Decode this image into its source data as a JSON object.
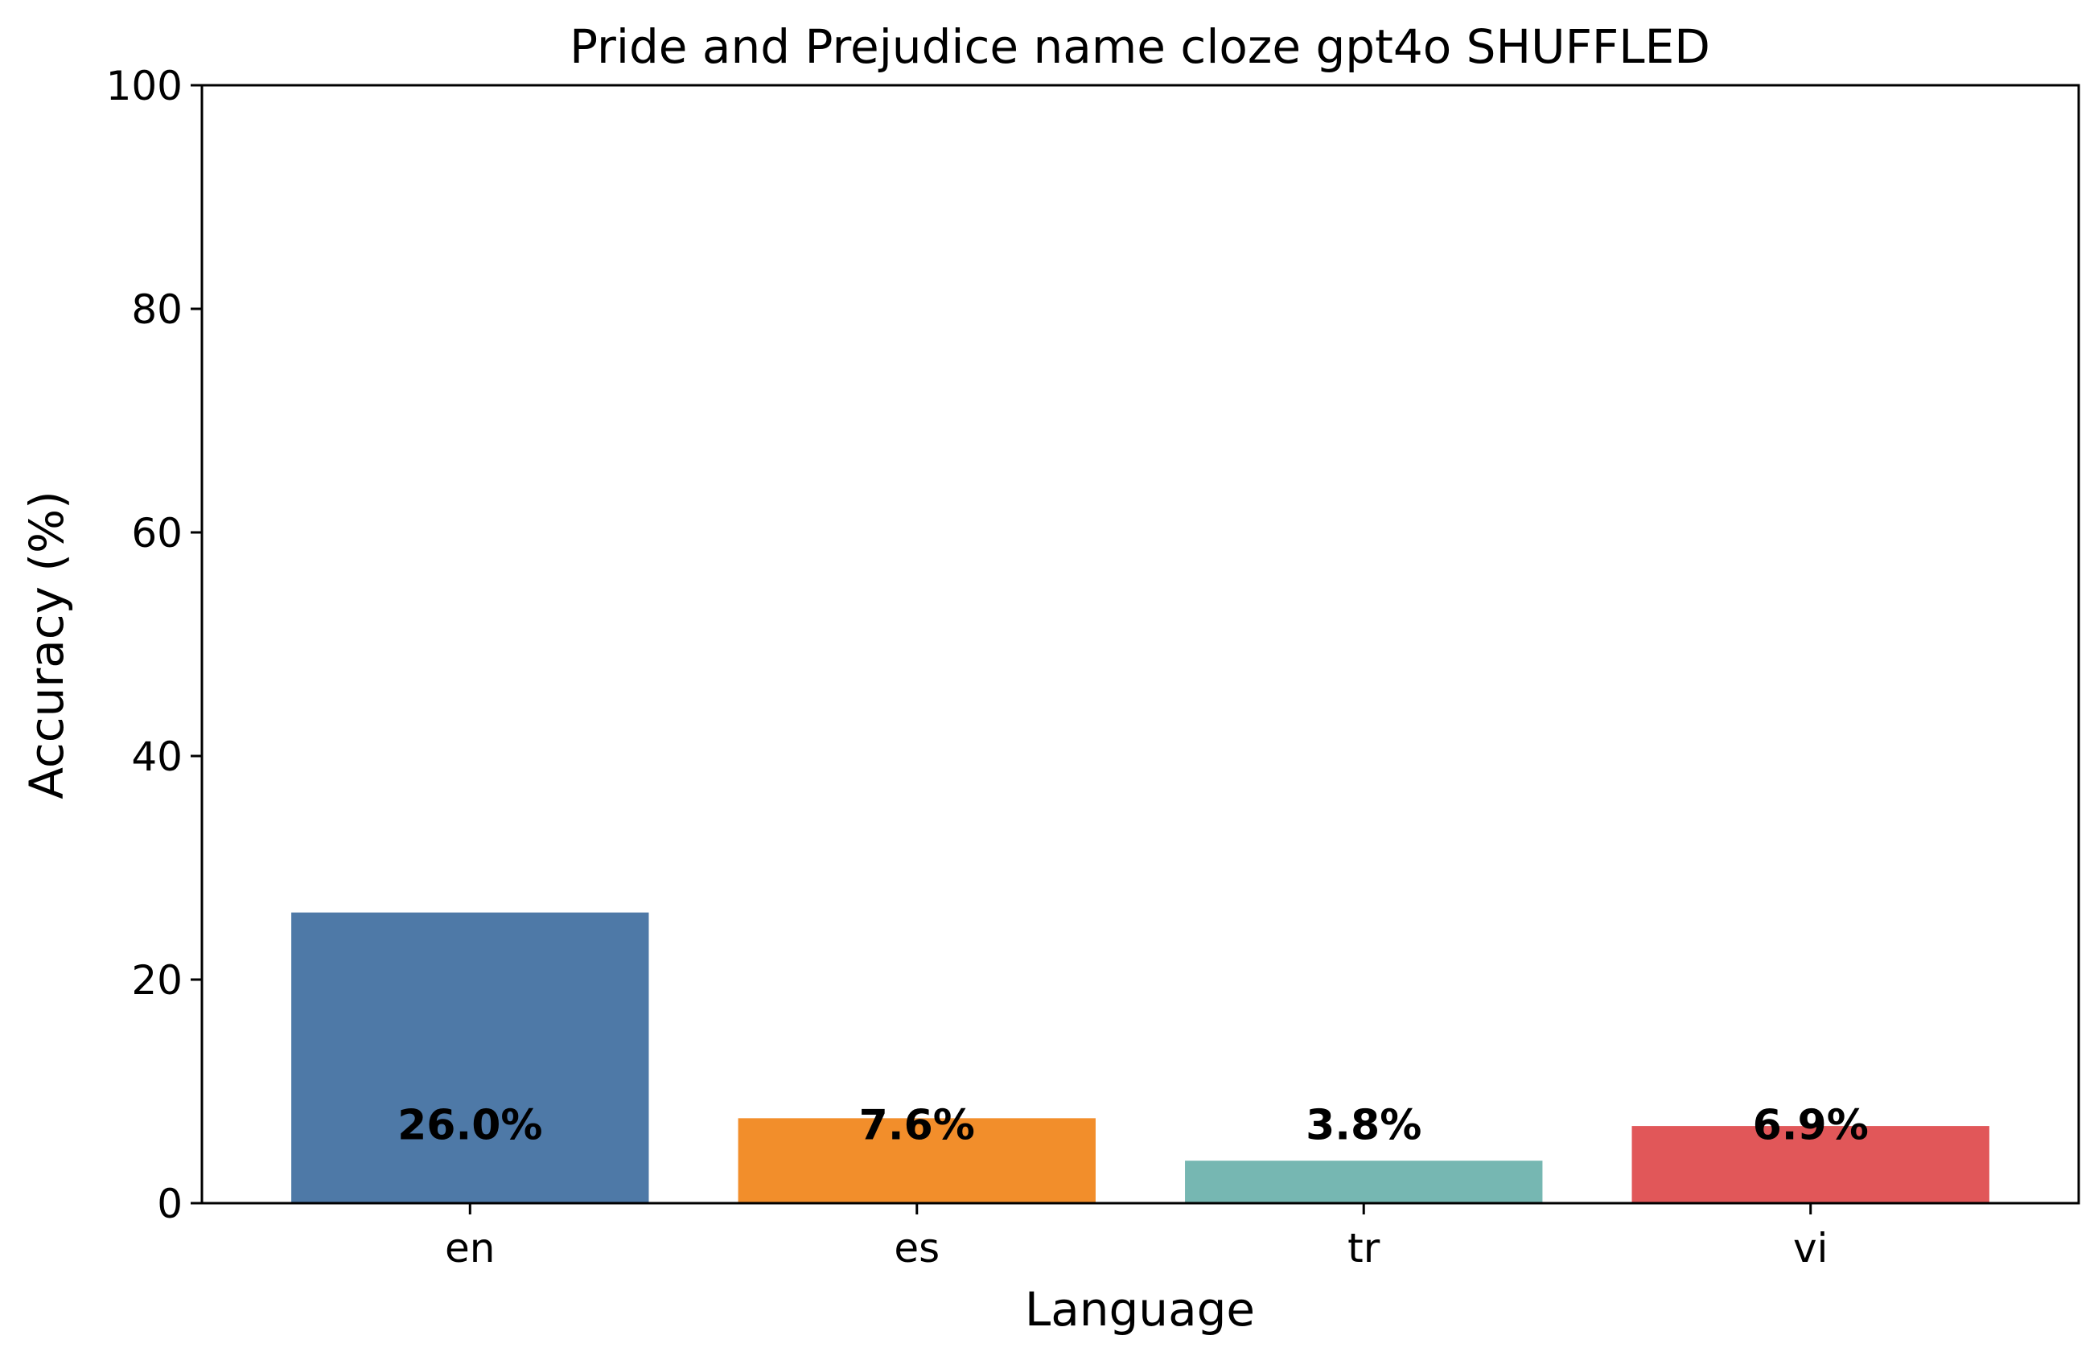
{
  "chart_data": {
    "type": "bar",
    "title": "Pride and Prejudice name cloze gpt4o SHUFFLED",
    "xlabel": "Language",
    "ylabel": "Accuracy (%)",
    "categories": [
      "en",
      "es",
      "tr",
      "vi"
    ],
    "values": [
      26.0,
      7.6,
      3.8,
      6.9
    ],
    "data_labels": [
      "26.0%",
      "7.6%",
      "3.8%",
      "6.9%"
    ],
    "colors": [
      "#4e79a7",
      "#f28e2b",
      "#76b7b2",
      "#e15759"
    ],
    "ylim": [
      0,
      100
    ],
    "yticks": [
      0,
      20,
      40,
      60,
      80,
      100
    ],
    "data_label_value": 7,
    "grid": false,
    "legend": "none"
  }
}
